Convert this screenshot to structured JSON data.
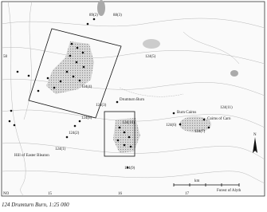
{
  "map": {
    "site_labels": [
      "89(2)",
      "88(3)",
      "124(5)",
      "124(4)",
      "124(3)",
      "124(10)",
      "124(2)",
      "124(1)",
      "124(8)",
      "124(6)",
      "124(7)",
      "124(9)",
      "124(11)"
    ],
    "place_names": [
      "Burn Cairns",
      "Cairns of Carn",
      "Forest of Alyth",
      "Drumturn Burn",
      "Hill of Easter Bleaton"
    ],
    "grid_labels": [
      "58",
      "NO",
      "15",
      "16",
      "17"
    ],
    "scale_unit": "km",
    "north": "N"
  },
  "caption": "124  Drumturn Burn, 1:25 000"
}
